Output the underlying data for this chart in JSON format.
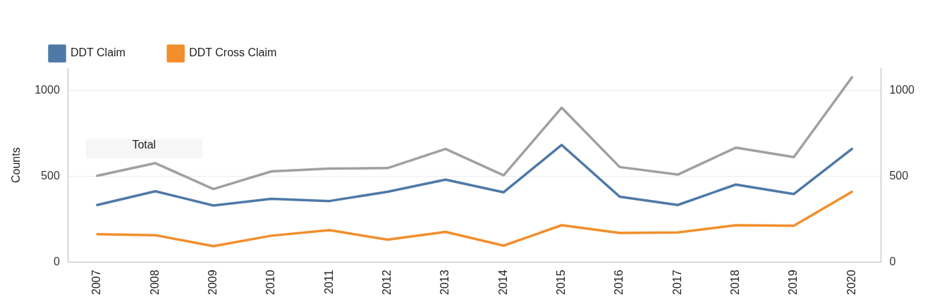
{
  "chart_data": {
    "type": "line",
    "ylabel": "Counts",
    "categories": [
      "2007",
      "2008",
      "2009",
      "2010",
      "2011",
      "2012",
      "2013",
      "2014",
      "2015",
      "2016",
      "2017",
      "2018",
      "2019",
      "2020"
    ],
    "series": [
      {
        "color": "#a0a0a0",
        "values": [
          503,
          577,
          426,
          529,
          545,
          548,
          660,
          506,
          900,
          554,
          510,
          667,
          612,
          1077
        ]
      },
      {
        "name": "DDT Claim",
        "color": "#4e79a7",
        "values": [
          333,
          413,
          330,
          369,
          356,
          410,
          481,
          407,
          683,
          381,
          333,
          452,
          397,
          660
        ]
      },
      {
        "name": "DDT Cross Claim",
        "color": "#f28e2b",
        "values": [
          163,
          157,
          93,
          154,
          186,
          131,
          176,
          96,
          215,
          170,
          173,
          215,
          212,
          410
        ]
      }
    ],
    "ylim": [
      0,
      1130
    ],
    "yticks": [
      0,
      500,
      1000
    ],
    "y2lim": [
      0,
      1130
    ],
    "y2ticks": [
      0,
      500,
      1000
    ],
    "grid": "y",
    "legend": "top left",
    "marker": "none",
    "line_style": "solid",
    "annotations": [
      "Total"
    ]
  }
}
